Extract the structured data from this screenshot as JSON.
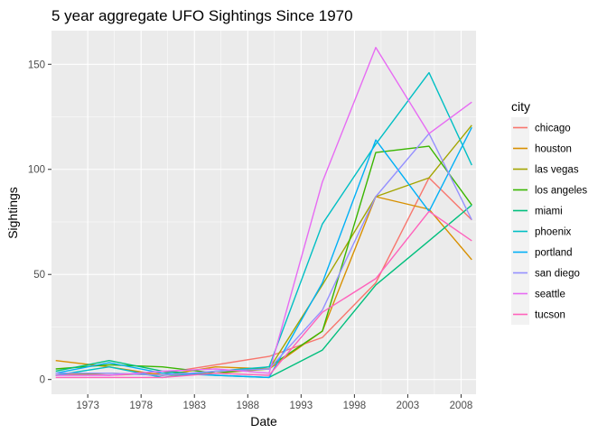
{
  "chart_data": {
    "type": "line",
    "title": "5 year aggregate UFO Sightings Since 1970",
    "xlabel": "Date",
    "ylabel": "Sightings",
    "x": [
      1970,
      1975,
      1980,
      1985,
      1990,
      1995,
      2000,
      2005,
      2009
    ],
    "xlim": [
      1969.6,
      2009.4
    ],
    "ylim": [
      -7,
      166
    ],
    "xticks": [
      1973,
      1978,
      1983,
      1988,
      1993,
      1998,
      2003,
      2008
    ],
    "xtick_labels": [
      "1973",
      "1978",
      "1983",
      "1988",
      "1993",
      "1998",
      "2003",
      "2008"
    ],
    "yticks": [
      0,
      50,
      100,
      150
    ],
    "ytick_labels": [
      "0",
      "50",
      "100",
      "150"
    ],
    "grid": false,
    "legend_title": "city",
    "legend_position": "right",
    "series": [
      {
        "name": "chicago",
        "color": "#F8766D",
        "values": [
          3,
          2,
          3,
          7,
          11,
          20,
          46,
          96,
          76
        ]
      },
      {
        "name": "houston",
        "color": "#D89000",
        "values": [
          9,
          6,
          2,
          6,
          5,
          23,
          87,
          81,
          57
        ]
      },
      {
        "name": "las vegas",
        "color": "#A3A500",
        "values": [
          2,
          3,
          2,
          3,
          5,
          45,
          87,
          96,
          121
        ]
      },
      {
        "name": "los angeles",
        "color": "#39B600",
        "values": [
          5,
          7,
          6,
          3,
          6,
          23,
          108,
          111,
          83
        ]
      },
      {
        "name": "miami",
        "color": "#00BF7D",
        "values": [
          4,
          9,
          4,
          2,
          1,
          14,
          45,
          66,
          83
        ]
      },
      {
        "name": "phoenix",
        "color": "#00BFC4",
        "values": [
          2,
          6,
          1,
          4,
          6,
          74,
          112,
          146,
          102
        ]
      },
      {
        "name": "portland",
        "color": "#00B0F6",
        "values": [
          3,
          8,
          3,
          2,
          1,
          46,
          114,
          80,
          120
        ]
      },
      {
        "name": "san diego",
        "color": "#9590FF",
        "values": [
          3,
          3,
          2,
          4,
          5,
          33,
          87,
          117,
          76
        ]
      },
      {
        "name": "seattle",
        "color": "#E76BF3",
        "values": [
          2,
          2,
          4,
          5,
          3,
          94,
          158,
          117,
          132
        ]
      },
      {
        "name": "tucson",
        "color": "#FF62BC",
        "values": [
          1,
          1,
          1,
          3,
          2,
          32,
          48,
          80,
          66
        ]
      }
    ]
  }
}
